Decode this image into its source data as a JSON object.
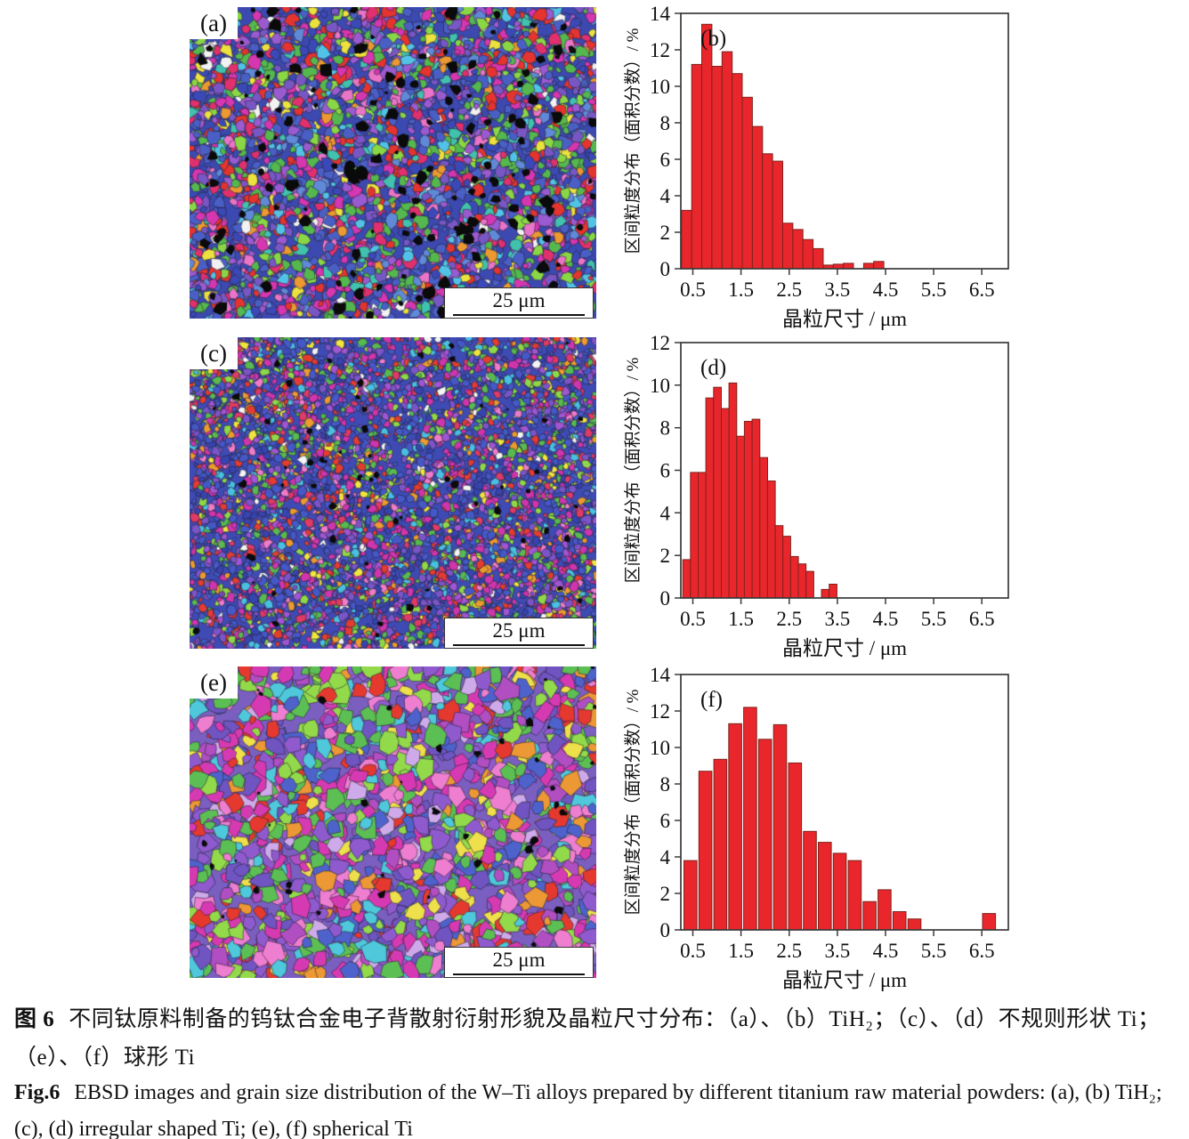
{
  "figure": {
    "panels": [
      {
        "label": "(a)",
        "scale_bar": "25 μm"
      },
      {
        "label": "(c)",
        "scale_bar": "25 μm"
      },
      {
        "label": "(e)",
        "scale_bar": "25 μm"
      }
    ]
  },
  "colors": {
    "bar_fill": "#e8262b",
    "bar_stroke": "#7f231d",
    "axis": "#3a3a3a",
    "text": "#111111"
  },
  "chart_data": [
    {
      "type": "bar",
      "panel_label": "(b)",
      "xlabel": "晶粒尺寸 / μm",
      "ylabel": "区间粒度分布（面积分数）/ %",
      "xlim": [
        0.25,
        7.05
      ],
      "ylim": [
        0,
        14
      ],
      "xticks": [
        0.5,
        1.5,
        2.5,
        3.5,
        4.5,
        5.5,
        6.5
      ],
      "yticks": [
        0,
        2,
        4,
        6,
        8,
        10,
        12,
        14
      ],
      "bar_width": 0.21,
      "bars": [
        {
          "x": 0.37,
          "v": 3.2
        },
        {
          "x": 0.58,
          "v": 11.2
        },
        {
          "x": 0.79,
          "v": 13.4
        },
        {
          "x": 1.0,
          "v": 11.1
        },
        {
          "x": 1.21,
          "v": 11.9
        },
        {
          "x": 1.42,
          "v": 10.7
        },
        {
          "x": 1.63,
          "v": 9.4
        },
        {
          "x": 1.84,
          "v": 7.8
        },
        {
          "x": 2.05,
          "v": 6.3
        },
        {
          "x": 2.26,
          "v": 5.9
        },
        {
          "x": 2.47,
          "v": 2.5
        },
        {
          "x": 2.68,
          "v": 2.15
        },
        {
          "x": 2.89,
          "v": 1.6
        },
        {
          "x": 3.1,
          "v": 1.1
        },
        {
          "x": 3.31,
          "v": 0.2
        },
        {
          "x": 3.52,
          "v": 0.25
        },
        {
          "x": 3.73,
          "v": 0.3
        },
        {
          "x": 4.15,
          "v": 0.3
        },
        {
          "x": 4.36,
          "v": 0.4
        }
      ]
    },
    {
      "type": "bar",
      "panel_label": "(d)",
      "xlabel": "晶粒尺寸 / μm",
      "ylabel": "区间粒度分布（面积分数）/ %",
      "xlim": [
        0.25,
        7.05
      ],
      "ylim": [
        0,
        12
      ],
      "xticks": [
        0.5,
        1.5,
        2.5,
        3.5,
        4.5,
        5.5,
        6.5
      ],
      "yticks": [
        0,
        2,
        4,
        6,
        8,
        10,
        12
      ],
      "bar_width": 0.16,
      "bars": [
        {
          "x": 0.37,
          "v": 1.8
        },
        {
          "x": 0.53,
          "v": 5.9
        },
        {
          "x": 0.69,
          "v": 5.9
        },
        {
          "x": 0.85,
          "v": 9.4
        },
        {
          "x": 1.01,
          "v": 9.9
        },
        {
          "x": 1.17,
          "v": 8.9
        },
        {
          "x": 1.33,
          "v": 10.1
        },
        {
          "x": 1.49,
          "v": 7.6
        },
        {
          "x": 1.65,
          "v": 8.3
        },
        {
          "x": 1.81,
          "v": 8.4
        },
        {
          "x": 1.97,
          "v": 6.6
        },
        {
          "x": 2.13,
          "v": 5.5
        },
        {
          "x": 2.29,
          "v": 3.4
        },
        {
          "x": 2.45,
          "v": 2.9
        },
        {
          "x": 2.61,
          "v": 1.95
        },
        {
          "x": 2.77,
          "v": 1.6
        },
        {
          "x": 2.93,
          "v": 1.25
        },
        {
          "x": 3.25,
          "v": 0.4
        },
        {
          "x": 3.41,
          "v": 0.65
        }
      ]
    },
    {
      "type": "bar",
      "panel_label": "(f)",
      "xlabel": "晶粒尺寸 / μm",
      "ylabel": "区间粒度分布（面积分数）/ %",
      "xlim": [
        0.25,
        7.05
      ],
      "ylim": [
        0,
        14
      ],
      "xticks": [
        0.5,
        1.5,
        2.5,
        3.5,
        4.5,
        5.5,
        6.5
      ],
      "yticks": [
        0,
        2,
        4,
        6,
        8,
        10,
        12,
        14
      ],
      "bar_width": 0.27,
      "bars": [
        {
          "x": 0.45,
          "v": 3.8
        },
        {
          "x": 0.76,
          "v": 8.7
        },
        {
          "x": 1.07,
          "v": 9.35
        },
        {
          "x": 1.38,
          "v": 11.3
        },
        {
          "x": 1.69,
          "v": 12.2
        },
        {
          "x": 2.0,
          "v": 10.45
        },
        {
          "x": 2.31,
          "v": 11.25
        },
        {
          "x": 2.62,
          "v": 9.15
        },
        {
          "x": 2.93,
          "v": 5.4
        },
        {
          "x": 3.24,
          "v": 4.8
        },
        {
          "x": 3.55,
          "v": 4.2
        },
        {
          "x": 3.86,
          "v": 3.8
        },
        {
          "x": 4.17,
          "v": 1.55
        },
        {
          "x": 4.48,
          "v": 2.2
        },
        {
          "x": 4.79,
          "v": 1.0
        },
        {
          "x": 5.1,
          "v": 0.6
        },
        {
          "x": 6.65,
          "v": 0.9
        }
      ]
    }
  ],
  "captions": {
    "cn_label": "图 6",
    "cn_text": "不同钛原料制备的钨钛合金电子背散射衍射形貌及晶粒尺寸分布：（a）、（b）TiH₂；（c）、（d）不规则形状 Ti；（e）、（f）球形 Ti",
    "en_label": "Fig.6",
    "en_text": "EBSD images and grain size distribution of the W–Ti alloys prepared by different titanium raw material powders: (a), (b) TiH₂; (c), (d) irregular shaped Ti; (e), (f) spherical Ti"
  }
}
